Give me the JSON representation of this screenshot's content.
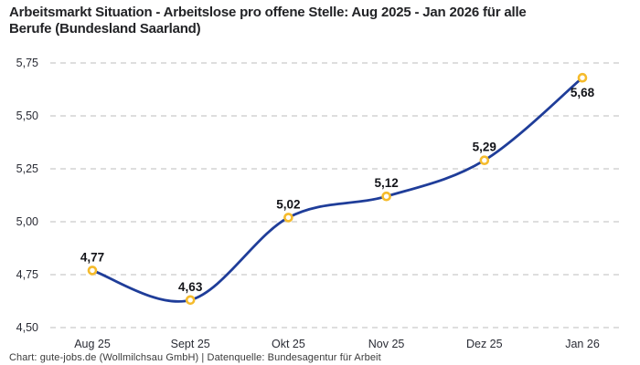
{
  "header": {
    "title_line1": "Arbeitsmarkt Situation - Arbeitslose pro offene Stelle: Aug 2025 - Jan 2026 für alle",
    "title_line2": "Berufe (Bundesland Saarland)"
  },
  "footer": {
    "text": "Chart: gute-jobs.de (Wollmilchsau GmbH) | Datenquelle: Bundesagentur für Arbeit"
  },
  "chart_data": {
    "type": "line",
    "title": "Arbeitsmarkt Situation - Arbeitslose pro offene Stelle: Aug 2025 - Jan 2026 für alle Berufe (Bundesland Saarland)",
    "categories": [
      "Aug 25",
      "Sept 25",
      "Okt 25",
      "Nov 25",
      "Dez 25",
      "Jan 26"
    ],
    "values": [
      4.77,
      4.63,
      5.02,
      5.12,
      5.29,
      5.68
    ],
    "point_labels": [
      "4,77",
      "4,63",
      "5,02",
      "5,12",
      "5,29",
      "5,68"
    ],
    "point_label_positions": [
      "above",
      "above",
      "above",
      "above",
      "above",
      "below"
    ],
    "ylim": [
      4.5,
      5.75
    ],
    "yticks": [
      4.5,
      4.75,
      5.0,
      5.25,
      5.5,
      5.75
    ],
    "ytick_labels": [
      "4,50",
      "4,75",
      "5,00",
      "5,25",
      "5,50",
      "5,75"
    ],
    "xlabel": "",
    "ylabel": "",
    "legend": "none",
    "grid": "horizontal-dashed",
    "line_style": "smooth",
    "colors": {
      "line": "#1F3D99",
      "marker_ring": "#F5BB2C",
      "marker_fill": "#FFFFFF",
      "gridline": "#CBCBCB",
      "tick_text": "#2A2C35",
      "value_text": "#131419"
    }
  }
}
